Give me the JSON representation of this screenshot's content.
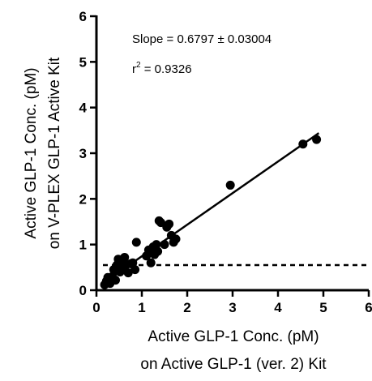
{
  "chart_data": {
    "type": "scatter",
    "xlabel_lines": [
      "Active GLP-1 Conc. (pM)",
      "on Active GLP-1 (ver. 2) Kit"
    ],
    "ylabel_lines": [
      "Active GLP-1 Conc. (pM)",
      "on V-PLEX GLP-1 Active Kit"
    ],
    "xlim": [
      0,
      6
    ],
    "ylim": [
      0,
      6
    ],
    "x_ticks": [
      0,
      1,
      2,
      3,
      4,
      5,
      6
    ],
    "y_ticks": [
      0,
      1,
      2,
      3,
      4,
      5,
      6
    ],
    "annotations": {
      "slope_text": "Slope = 0.6797 ± 0.03004",
      "r2_prefix": "r",
      "r2_sup": "2",
      "r2_suffix": " = 0.9326"
    },
    "fit_line": {
      "x": [
        0.2,
        4.9
      ],
      "y": [
        0.19,
        3.44
      ]
    },
    "reference_line": {
      "style": "dashed",
      "y": 0.55,
      "x": [
        0,
        6
      ]
    },
    "points": [
      {
        "x": 0.18,
        "y": 0.12
      },
      {
        "x": 0.22,
        "y": 0.2
      },
      {
        "x": 0.25,
        "y": 0.28
      },
      {
        "x": 0.3,
        "y": 0.15
      },
      {
        "x": 0.35,
        "y": 0.3
      },
      {
        "x": 0.38,
        "y": 0.45
      },
      {
        "x": 0.42,
        "y": 0.22
      },
      {
        "x": 0.45,
        "y": 0.55
      },
      {
        "x": 0.48,
        "y": 0.68
      },
      {
        "x": 0.52,
        "y": 0.4
      },
      {
        "x": 0.55,
        "y": 0.58
      },
      {
        "x": 0.58,
        "y": 0.45
      },
      {
        "x": 0.62,
        "y": 0.72
      },
      {
        "x": 0.65,
        "y": 0.55
      },
      {
        "x": 0.7,
        "y": 0.38
      },
      {
        "x": 0.75,
        "y": 0.58
      },
      {
        "x": 0.8,
        "y": 0.6
      },
      {
        "x": 0.85,
        "y": 0.45
      },
      {
        "x": 0.88,
        "y": 1.05
      },
      {
        "x": 1.1,
        "y": 0.75
      },
      {
        "x": 1.15,
        "y": 0.88
      },
      {
        "x": 1.2,
        "y": 0.6
      },
      {
        "x": 1.25,
        "y": 0.95
      },
      {
        "x": 1.28,
        "y": 0.78
      },
      {
        "x": 1.32,
        "y": 1.0
      },
      {
        "x": 1.35,
        "y": 0.85
      },
      {
        "x": 1.38,
        "y": 1.52
      },
      {
        "x": 1.42,
        "y": 1.48
      },
      {
        "x": 1.5,
        "y": 1.0
      },
      {
        "x": 1.55,
        "y": 1.38
      },
      {
        "x": 1.6,
        "y": 1.45
      },
      {
        "x": 1.65,
        "y": 1.2
      },
      {
        "x": 1.7,
        "y": 1.05
      },
      {
        "x": 1.75,
        "y": 1.12
      },
      {
        "x": 2.95,
        "y": 2.3
      },
      {
        "x": 4.55,
        "y": 3.2
      },
      {
        "x": 4.85,
        "y": 3.3
      }
    ]
  }
}
